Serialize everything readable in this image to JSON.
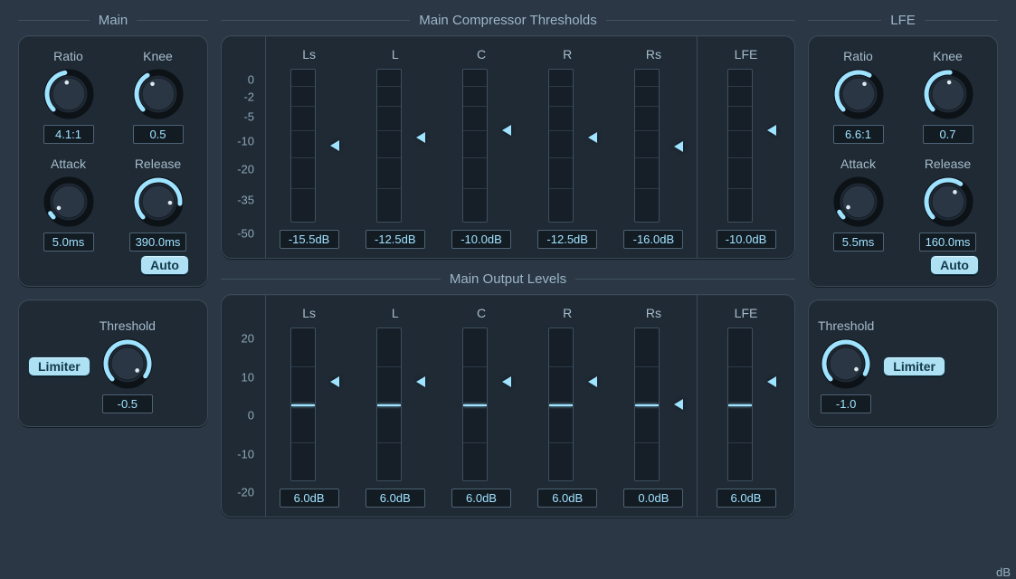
{
  "accent": "#9ee3ff",
  "panel_bg": "#1f2a35",
  "main": {
    "title": "Main",
    "ratio": {
      "label": "Ratio",
      "value": "4.1:1",
      "arc_start": -135,
      "arc_end": -10,
      "dot": -10
    },
    "knee": {
      "label": "Knee",
      "value": "0.5",
      "arc_start": -135,
      "arc_end": -30,
      "dot": -30
    },
    "attack": {
      "label": "Attack",
      "value": "5.0ms",
      "arc_start": -135,
      "arc_end": -122,
      "dot": -122
    },
    "release": {
      "label": "Release",
      "value": "390.0ms",
      "arc_start": -135,
      "arc_end": 95,
      "dot": 95
    },
    "auto_label": "Auto",
    "limiter_label": "Limiter",
    "threshold": {
      "label": "Threshold",
      "value": "-0.5",
      "arc_start": -135,
      "arc_end": 125,
      "dot": 125
    }
  },
  "lfe": {
    "title": "LFE",
    "ratio": {
      "label": "Ratio",
      "value": "6.6:1",
      "arc_start": -135,
      "arc_end": 30,
      "dot": 30
    },
    "knee": {
      "label": "Knee",
      "value": "0.7",
      "arc_start": -135,
      "arc_end": 5,
      "dot": 5
    },
    "attack": {
      "label": "Attack",
      "value": "5.5ms",
      "arc_start": -135,
      "arc_end": -118,
      "dot": -118
    },
    "release": {
      "label": "Release",
      "value": "160.0ms",
      "arc_start": -135,
      "arc_end": 35,
      "dot": 35
    },
    "auto_label": "Auto",
    "limiter_label": "Limiter",
    "threshold": {
      "label": "Threshold",
      "value": "-1.0",
      "arc_start": -135,
      "arc_end": 118,
      "dot": 118
    }
  },
  "compressor": {
    "title": "Main Compressor Thresholds",
    "scale_ticks": [
      "0",
      "-2",
      "-5",
      "-10",
      "-20",
      "-35",
      "-50"
    ],
    "db_label": "dB",
    "meter_range_db": 50,
    "channels": [
      {
        "name": "Ls",
        "value_db": -15.5,
        "display": "-15.5dB"
      },
      {
        "name": "L",
        "value_db": -12.5,
        "display": "-12.5dB"
      },
      {
        "name": "C",
        "value_db": -10.0,
        "display": "-10.0dB"
      },
      {
        "name": "R",
        "value_db": -12.5,
        "display": "-12.5dB"
      },
      {
        "name": "Rs",
        "value_db": -16.0,
        "display": "-16.0dB"
      }
    ],
    "lfe_channel": {
      "name": "LFE",
      "value_db": -10.0,
      "display": "-10.0dB"
    }
  },
  "output": {
    "title": "Main Output Levels",
    "scale_ticks": [
      "20",
      "10",
      "0",
      "-10",
      "-20"
    ],
    "db_label": "dB",
    "min_db": -20,
    "max_db": 20,
    "channels": [
      {
        "name": "Ls",
        "value_db": 6.0,
        "display": "6.0dB"
      },
      {
        "name": "L",
        "value_db": 6.0,
        "display": "6.0dB"
      },
      {
        "name": "C",
        "value_db": 6.0,
        "display": "6.0dB"
      },
      {
        "name": "R",
        "value_db": 6.0,
        "display": "6.0dB"
      },
      {
        "name": "Rs",
        "value_db": 0.0,
        "display": "0.0dB"
      }
    ],
    "lfe_channel": {
      "name": "LFE",
      "value_db": 6.0,
      "display": "6.0dB"
    }
  }
}
